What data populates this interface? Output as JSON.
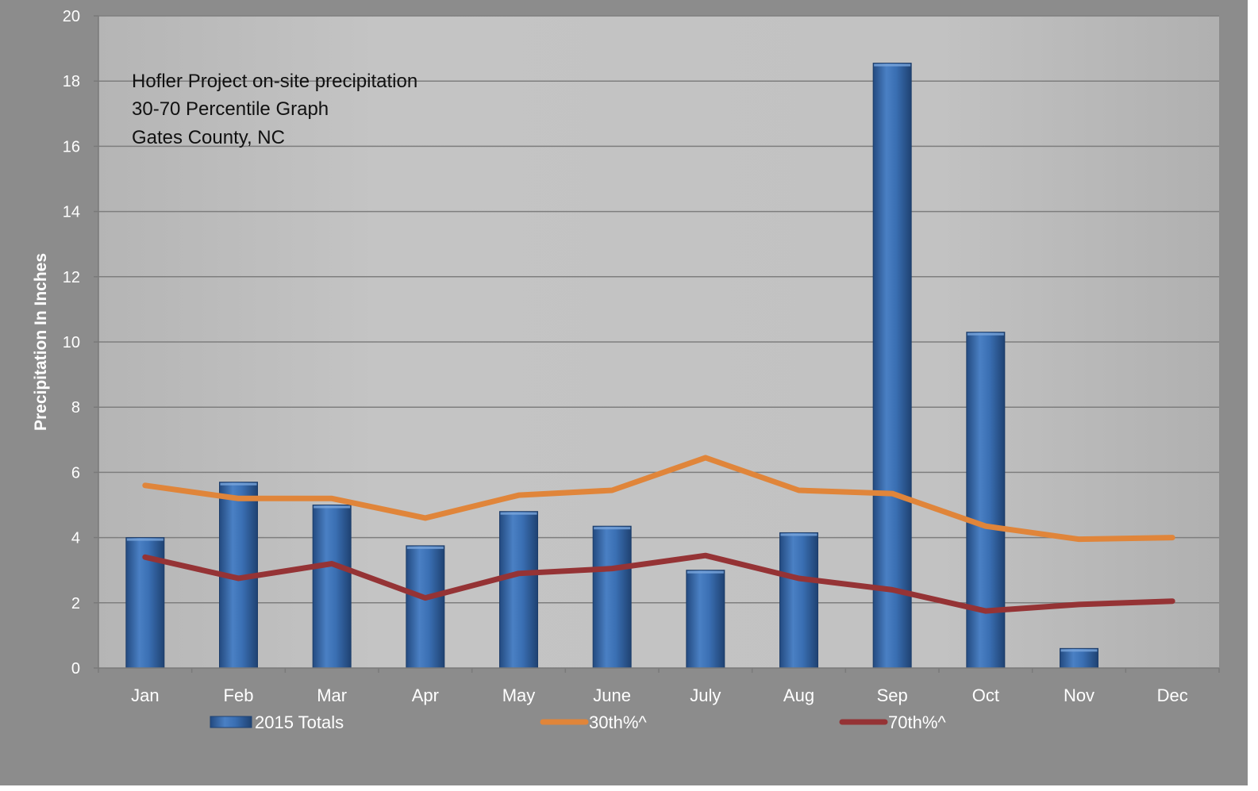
{
  "chart_data": {
    "type": "bar",
    "title_lines": [
      "Hofler Project on-site precipitation",
      "30-70 Percentile Graph",
      "Gates County, NC"
    ],
    "xlabel": "",
    "ylabel": "Precipitation In Inches",
    "ylim": [
      0,
      20
    ],
    "yticks": [
      0,
      2,
      4,
      6,
      8,
      10,
      12,
      14,
      16,
      18,
      20
    ],
    "grid": true,
    "legend_position": "bottom",
    "categories": [
      "Jan",
      "Feb",
      "Mar",
      "Apr",
      "May",
      "June",
      "July",
      "Aug",
      "Sep",
      "Oct",
      "Nov",
      "Dec"
    ],
    "series": [
      {
        "name": "2015 Totals",
        "kind": "bar",
        "color": "#2e5f9e",
        "values": [
          4.0,
          5.7,
          5.0,
          3.75,
          4.8,
          4.35,
          3.0,
          4.15,
          18.55,
          10.3,
          0.6,
          0
        ]
      },
      {
        "name": "30th%^",
        "kind": "line",
        "color": "#e0853a",
        "values": [
          5.6,
          5.2,
          5.2,
          4.6,
          5.3,
          5.45,
          6.45,
          5.45,
          5.35,
          4.35,
          3.95,
          4.0
        ]
      },
      {
        "name": "70th%^",
        "kind": "line",
        "color": "#953335",
        "values": [
          3.4,
          2.75,
          3.2,
          2.15,
          2.9,
          3.05,
          3.45,
          2.75,
          2.4,
          1.75,
          1.95,
          2.05
        ]
      }
    ]
  }
}
